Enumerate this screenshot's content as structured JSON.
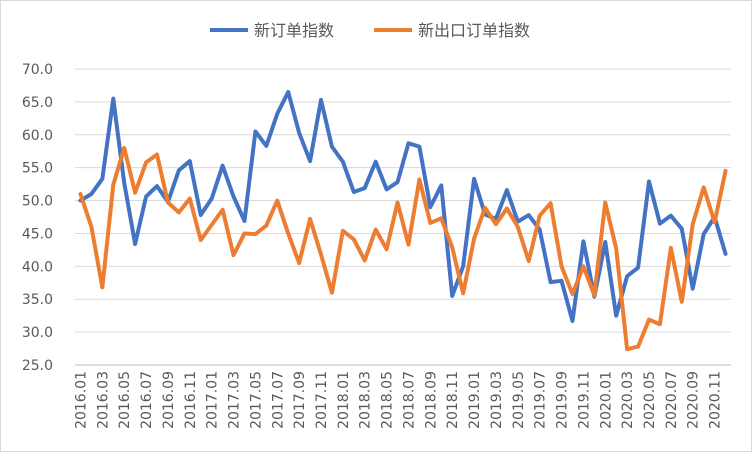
{
  "chart_data": {
    "type": "line",
    "title": "",
    "xlabel": "",
    "ylabel": "",
    "ylim": [
      25.0,
      70.0
    ],
    "yticks": [
      "70.0",
      "65.0",
      "60.0",
      "55.0",
      "50.0",
      "45.0",
      "40.0",
      "35.0",
      "30.0",
      "25.0"
    ],
    "x_tick_labels": [
      "2016.01",
      "2016.03",
      "2016.05",
      "2016.07",
      "2016.09",
      "2016.11",
      "2017.01",
      "2017.03",
      "2017.05",
      "2017.07",
      "2017.09",
      "2017.11",
      "2018.01",
      "2018.03",
      "2018.05",
      "2018.07",
      "2018.09",
      "2018.11",
      "2019.01",
      "2019.03",
      "2019.05",
      "2019.07",
      "2019.09",
      "2019.11",
      "2020.01",
      "2020.03",
      "2020.05",
      "2020.07",
      "2020.09",
      "2020.11"
    ],
    "x": [
      "2016.01",
      "2016.02",
      "2016.03",
      "2016.04",
      "2016.05",
      "2016.06",
      "2016.07",
      "2016.08",
      "2016.09",
      "2016.10",
      "2016.11",
      "2016.12",
      "2017.01",
      "2017.02",
      "2017.03",
      "2017.04",
      "2017.05",
      "2017.06",
      "2017.07",
      "2017.08",
      "2017.09",
      "2017.10",
      "2017.11",
      "2017.12",
      "2018.01",
      "2018.02",
      "2018.03",
      "2018.04",
      "2018.05",
      "2018.06",
      "2018.07",
      "2018.08",
      "2018.09",
      "2018.10",
      "2018.11",
      "2018.12",
      "2019.01",
      "2019.02",
      "2019.03",
      "2019.04",
      "2019.05",
      "2019.06",
      "2019.07",
      "2019.08",
      "2019.09",
      "2019.10",
      "2019.11",
      "2019.12",
      "2020.01",
      "2020.02",
      "2020.03",
      "2020.04",
      "2020.05",
      "2020.06",
      "2020.07",
      "2020.08",
      "2020.09",
      "2020.10",
      "2020.11",
      "2020.12"
    ],
    "grid": true,
    "legend_position": "top",
    "series": [
      {
        "name": "新订单指数",
        "color": "#4472C4",
        "values": [
          50.0,
          51.0,
          53.3,
          65.5,
          52.7,
          43.4,
          50.6,
          52.2,
          49.8,
          54.6,
          56.0,
          47.8,
          50.3,
          55.3,
          50.6,
          46.9,
          60.5,
          58.3,
          63.2,
          66.5,
          60.3,
          56.0,
          65.3,
          58.2,
          55.9,
          51.3,
          51.9,
          55.9,
          51.7,
          52.8,
          58.7,
          58.2,
          49.0,
          52.3,
          35.5,
          40.0,
          53.3,
          47.9,
          47.2,
          51.6,
          46.8,
          47.8,
          45.6,
          37.6,
          37.8,
          31.7,
          43.8,
          35.4,
          43.7,
          32.5,
          38.5,
          39.8,
          52.9,
          46.5,
          47.7,
          45.7,
          36.6,
          44.9,
          47.5,
          41.9
        ]
      },
      {
        "name": "新出口订单指数",
        "color": "#ED7D31",
        "values": [
          51.0,
          46.0,
          36.8,
          52.4,
          58.0,
          51.2,
          55.8,
          57.0,
          49.7,
          48.2,
          50.3,
          44.0,
          46.3,
          48.6,
          41.7,
          45.0,
          44.9,
          46.2,
          50.0,
          45.0,
          40.5,
          47.2,
          41.8,
          36.0,
          45.4,
          44.1,
          40.9,
          45.6,
          42.6,
          49.7,
          43.3,
          53.2,
          46.6,
          47.3,
          42.9,
          35.9,
          44.2,
          48.9,
          46.4,
          48.8,
          46.0,
          40.8,
          47.7,
          49.6,
          40.0,
          35.8,
          40.0,
          35.6,
          49.7,
          42.7,
          27.4,
          27.8,
          31.9,
          31.2,
          42.8,
          34.6,
          46.4,
          52.0,
          46.7,
          54.5
        ]
      }
    ]
  }
}
